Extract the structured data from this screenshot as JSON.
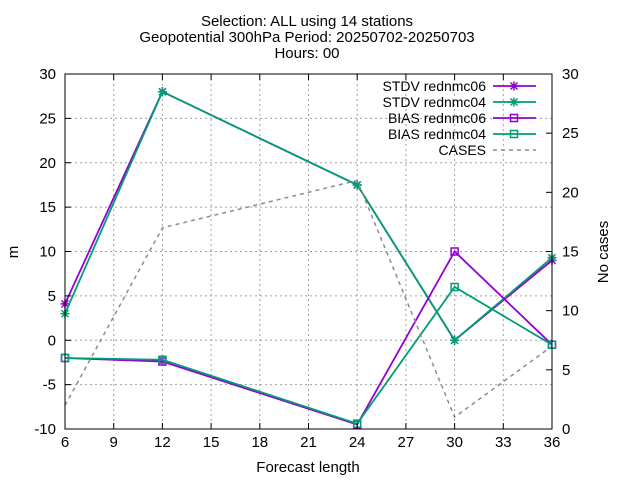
{
  "chart_data": {
    "type": "line",
    "title_lines": [
      "Selection: ALL using    14 stations",
      "Geopotential 300hPa   Period: 20250702-20250703",
      "Hours: 00"
    ],
    "xlabel": "Forecast length",
    "ylabel": "m",
    "y2label": "No cases",
    "x": [
      6,
      12,
      24,
      30,
      36
    ],
    "xlim": [
      6,
      36
    ],
    "xticks": [
      6,
      9,
      12,
      15,
      18,
      21,
      24,
      27,
      30,
      33,
      36
    ],
    "ylim": [
      -10,
      30
    ],
    "yticks": [
      -10,
      -5,
      0,
      5,
      10,
      15,
      20,
      25,
      30
    ],
    "y2lim": [
      0,
      30
    ],
    "y2ticks": [
      0,
      5,
      10,
      15,
      20,
      25,
      30
    ],
    "grid": true,
    "legend_position": "top-right",
    "series": [
      {
        "name": "STDV rednmc06",
        "axis": "y1",
        "color": "#9400d3",
        "marker": "x-star",
        "dash": false,
        "values": [
          4.1,
          28.0,
          17.5,
          0.0,
          9.0
        ]
      },
      {
        "name": "STDV rednmc04",
        "axis": "y1",
        "color": "#009e73",
        "marker": "x-star",
        "dash": false,
        "values": [
          3.0,
          28.0,
          17.5,
          0.0,
          9.3
        ]
      },
      {
        "name": "BIAS rednmc06",
        "axis": "y1",
        "color": "#9400d3",
        "marker": "square",
        "dash": false,
        "values": [
          -2.0,
          -2.4,
          -9.5,
          10.0,
          -0.5
        ]
      },
      {
        "name": "BIAS rednmc04",
        "axis": "y1",
        "color": "#009e73",
        "marker": "square",
        "dash": false,
        "values": [
          -2.0,
          -2.2,
          -9.4,
          6.0,
          -0.5
        ]
      },
      {
        "name": "CASES",
        "axis": "y2",
        "color": "#8c8c8c",
        "marker": "none",
        "dash": true,
        "values": [
          2,
          17,
          21,
          1,
          7
        ]
      }
    ]
  }
}
